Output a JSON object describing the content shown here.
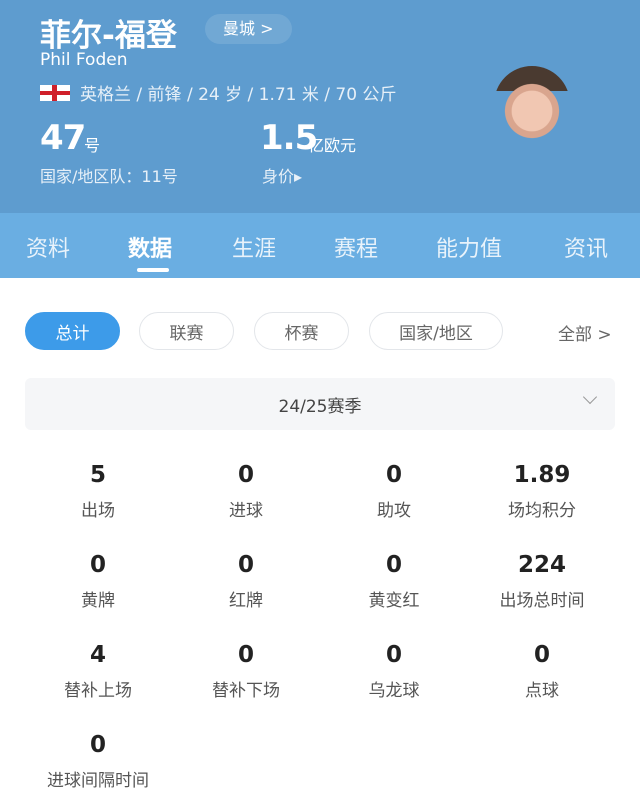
{
  "player": {
    "name_cn": "菲尔-福登",
    "team": "曼城 >",
    "name_en": "Phil Foden",
    "info": "英格兰 / 前锋 / 24 岁 / 1.71 米 / 70 公斤",
    "number": "47",
    "number_unit": "号",
    "national_number": "国家/地区队：11号",
    "value": "1.5",
    "value_unit": "亿欧元",
    "value_label": "身价▸"
  },
  "tabs": [
    "资料",
    "数据",
    "生涯",
    "赛程",
    "能力值",
    "资讯"
  ],
  "active_tab": "数据",
  "filters": [
    "总计",
    "联赛",
    "杯赛",
    "国家/地区"
  ],
  "filter_all": "全部 >",
  "season": "24/25赛季",
  "stats": [
    {
      "value": "5",
      "label": "出场"
    },
    {
      "value": "0",
      "label": "进球"
    },
    {
      "value": "0",
      "label": "助攻"
    },
    {
      "value": "1.89",
      "label": "场均积分"
    },
    {
      "value": "0",
      "label": "黄牌"
    },
    {
      "value": "0",
      "label": "红牌"
    },
    {
      "value": "0",
      "label": "黄变红"
    },
    {
      "value": "224",
      "label": "出场总时间"
    },
    {
      "value": "4",
      "label": "替补上场"
    },
    {
      "value": "0",
      "label": "替补下场"
    },
    {
      "value": "0",
      "label": "乌龙球"
    },
    {
      "value": "0",
      "label": "点球"
    },
    {
      "value": "0",
      "label": "进球间隔时间"
    }
  ],
  "colors": {
    "header": "#5e9ccf",
    "tabbar": "#6aaee2",
    "accent": "#3d9be9"
  }
}
